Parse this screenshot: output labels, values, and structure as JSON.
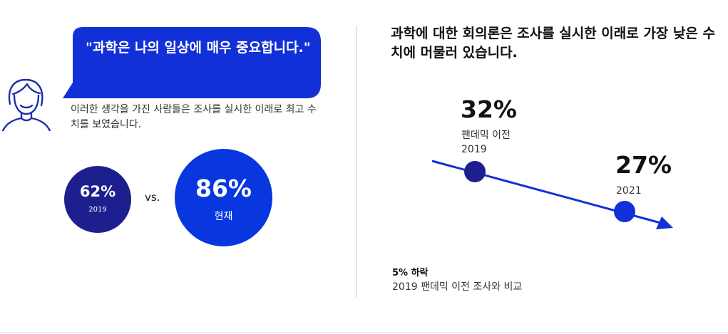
{
  "colors": {
    "navy": "#1e1f8f",
    "blue": "#0837e0",
    "bubble_blue": "#1130d8",
    "divider": "#cfcfcf"
  },
  "left": {
    "quote": "\"과학은 나의 일상에 매우 중요합니다.\"",
    "description": "이러한 생각을 가진 사람들은 조사를 실시한 이래로 최고 수치를 보였습니다.",
    "stat_2019": {
      "value": "62%",
      "label": "2019"
    },
    "vs": "vs.",
    "stat_now": {
      "value": "86%",
      "label": "현재"
    },
    "avatar_icon": "person-outline-icon"
  },
  "right": {
    "title": "과학에 대한 회의론은 조사를 실시한 이래로 가장 낮은 수치에 머물러 있습니다.",
    "point_2019": {
      "value": "32%",
      "label1": "팬데믹 이전",
      "label2": "2019"
    },
    "point_2021": {
      "value": "27%",
      "label": "2021"
    },
    "footnote_bold": "5% 하락",
    "footnote": "2019 팬데믹 이전 조사와 비교"
  },
  "chart_data": [
    {
      "type": "bar",
      "categories": [
        "2019",
        "현재"
      ],
      "values": [
        62,
        86
      ]
    },
    {
      "type": "line",
      "x": [
        "2019",
        "2021"
      ],
      "values": [
        32,
        27
      ],
      "ylim": [
        0,
        40
      ]
    }
  ]
}
